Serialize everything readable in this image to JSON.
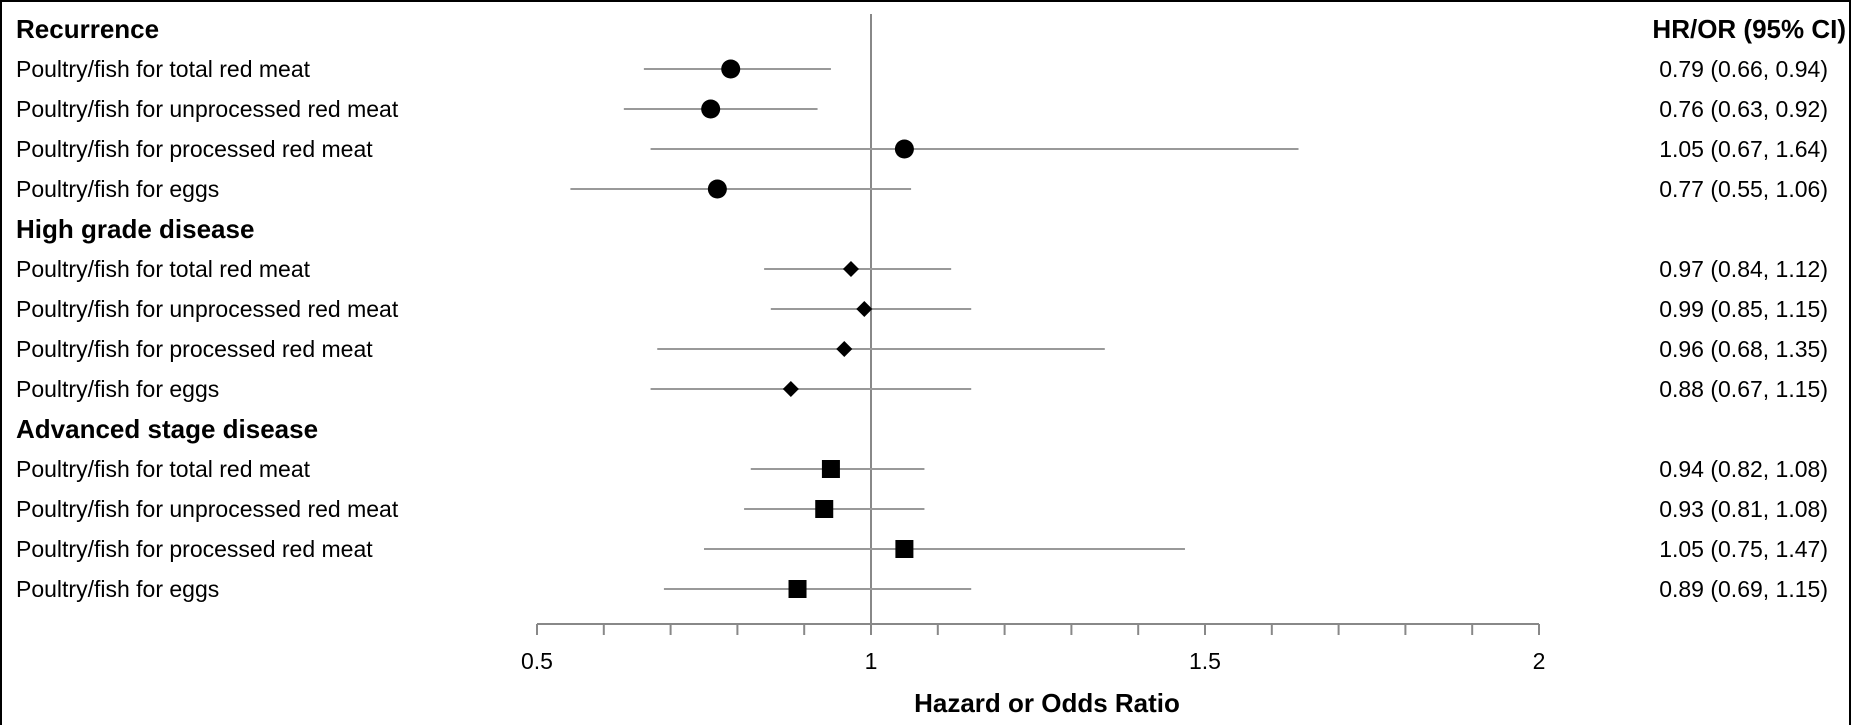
{
  "chart_data": {
    "type": "forest",
    "xlabel": "Hazard or Odds Ratio",
    "xlim": [
      0.5,
      2
    ],
    "xticks": [
      "0.5",
      "1",
      "1.5",
      "2"
    ],
    "minor_tick_step": 0.1,
    "reference_line": 1,
    "ci_header": "HR/OR (95% CI)",
    "groups": [
      {
        "name": "Recurrence",
        "marker": "circle",
        "rows": [
          {
            "label": "Poultry/fish for total red meat",
            "estimate": 0.79,
            "lower": 0.66,
            "upper": 0.94,
            "text": "0.79 (0.66, 0.94)"
          },
          {
            "label": "Poultry/fish for unprocessed red meat",
            "estimate": 0.76,
            "lower": 0.63,
            "upper": 0.92,
            "text": "0.76 (0.63, 0.92)"
          },
          {
            "label": "Poultry/fish for processed red meat",
            "estimate": 1.05,
            "lower": 0.67,
            "upper": 1.64,
            "text": "1.05 (0.67, 1.64)"
          },
          {
            "label": "Poultry/fish for eggs",
            "estimate": 0.77,
            "lower": 0.55,
            "upper": 1.06,
            "text": "0.77 (0.55, 1.06)"
          }
        ]
      },
      {
        "name": "High grade disease",
        "marker": "diamond",
        "rows": [
          {
            "label": "Poultry/fish for total red meat",
            "estimate": 0.97,
            "lower": 0.84,
            "upper": 1.12,
            "text": "0.97 (0.84, 1.12)"
          },
          {
            "label": "Poultry/fish for unprocessed red meat",
            "estimate": 0.99,
            "lower": 0.85,
            "upper": 1.15,
            "text": "0.99 (0.85, 1.15)"
          },
          {
            "label": "Poultry/fish for processed red meat",
            "estimate": 0.96,
            "lower": 0.68,
            "upper": 1.35,
            "text": "0.96 (0.68, 1.35)"
          },
          {
            "label": "Poultry/fish for eggs",
            "estimate": 0.88,
            "lower": 0.67,
            "upper": 1.15,
            "text": "0.88 (0.67, 1.15)"
          }
        ]
      },
      {
        "name": "Advanced stage disease",
        "marker": "square",
        "rows": [
          {
            "label": "Poultry/fish for total red meat",
            "estimate": 0.94,
            "lower": 0.82,
            "upper": 1.08,
            "text": "0.94 (0.82, 1.08)"
          },
          {
            "label": "Poultry/fish for unprocessed red meat",
            "estimate": 0.93,
            "lower": 0.81,
            "upper": 1.08,
            "text": "0.93 (0.81, 1.08)"
          },
          {
            "label": "Poultry/fish for processed red meat",
            "estimate": 1.05,
            "lower": 0.75,
            "upper": 1.47,
            "text": "1.05 (0.75, 1.47)"
          },
          {
            "label": "Poultry/fish for eggs",
            "estimate": 0.89,
            "lower": 0.69,
            "upper": 1.15,
            "text": "0.89 (0.69, 1.15)"
          }
        ]
      }
    ],
    "colors": {
      "marker": "#000000",
      "ci_line": "#999999",
      "axis": "#888888",
      "text": "#000000"
    }
  }
}
